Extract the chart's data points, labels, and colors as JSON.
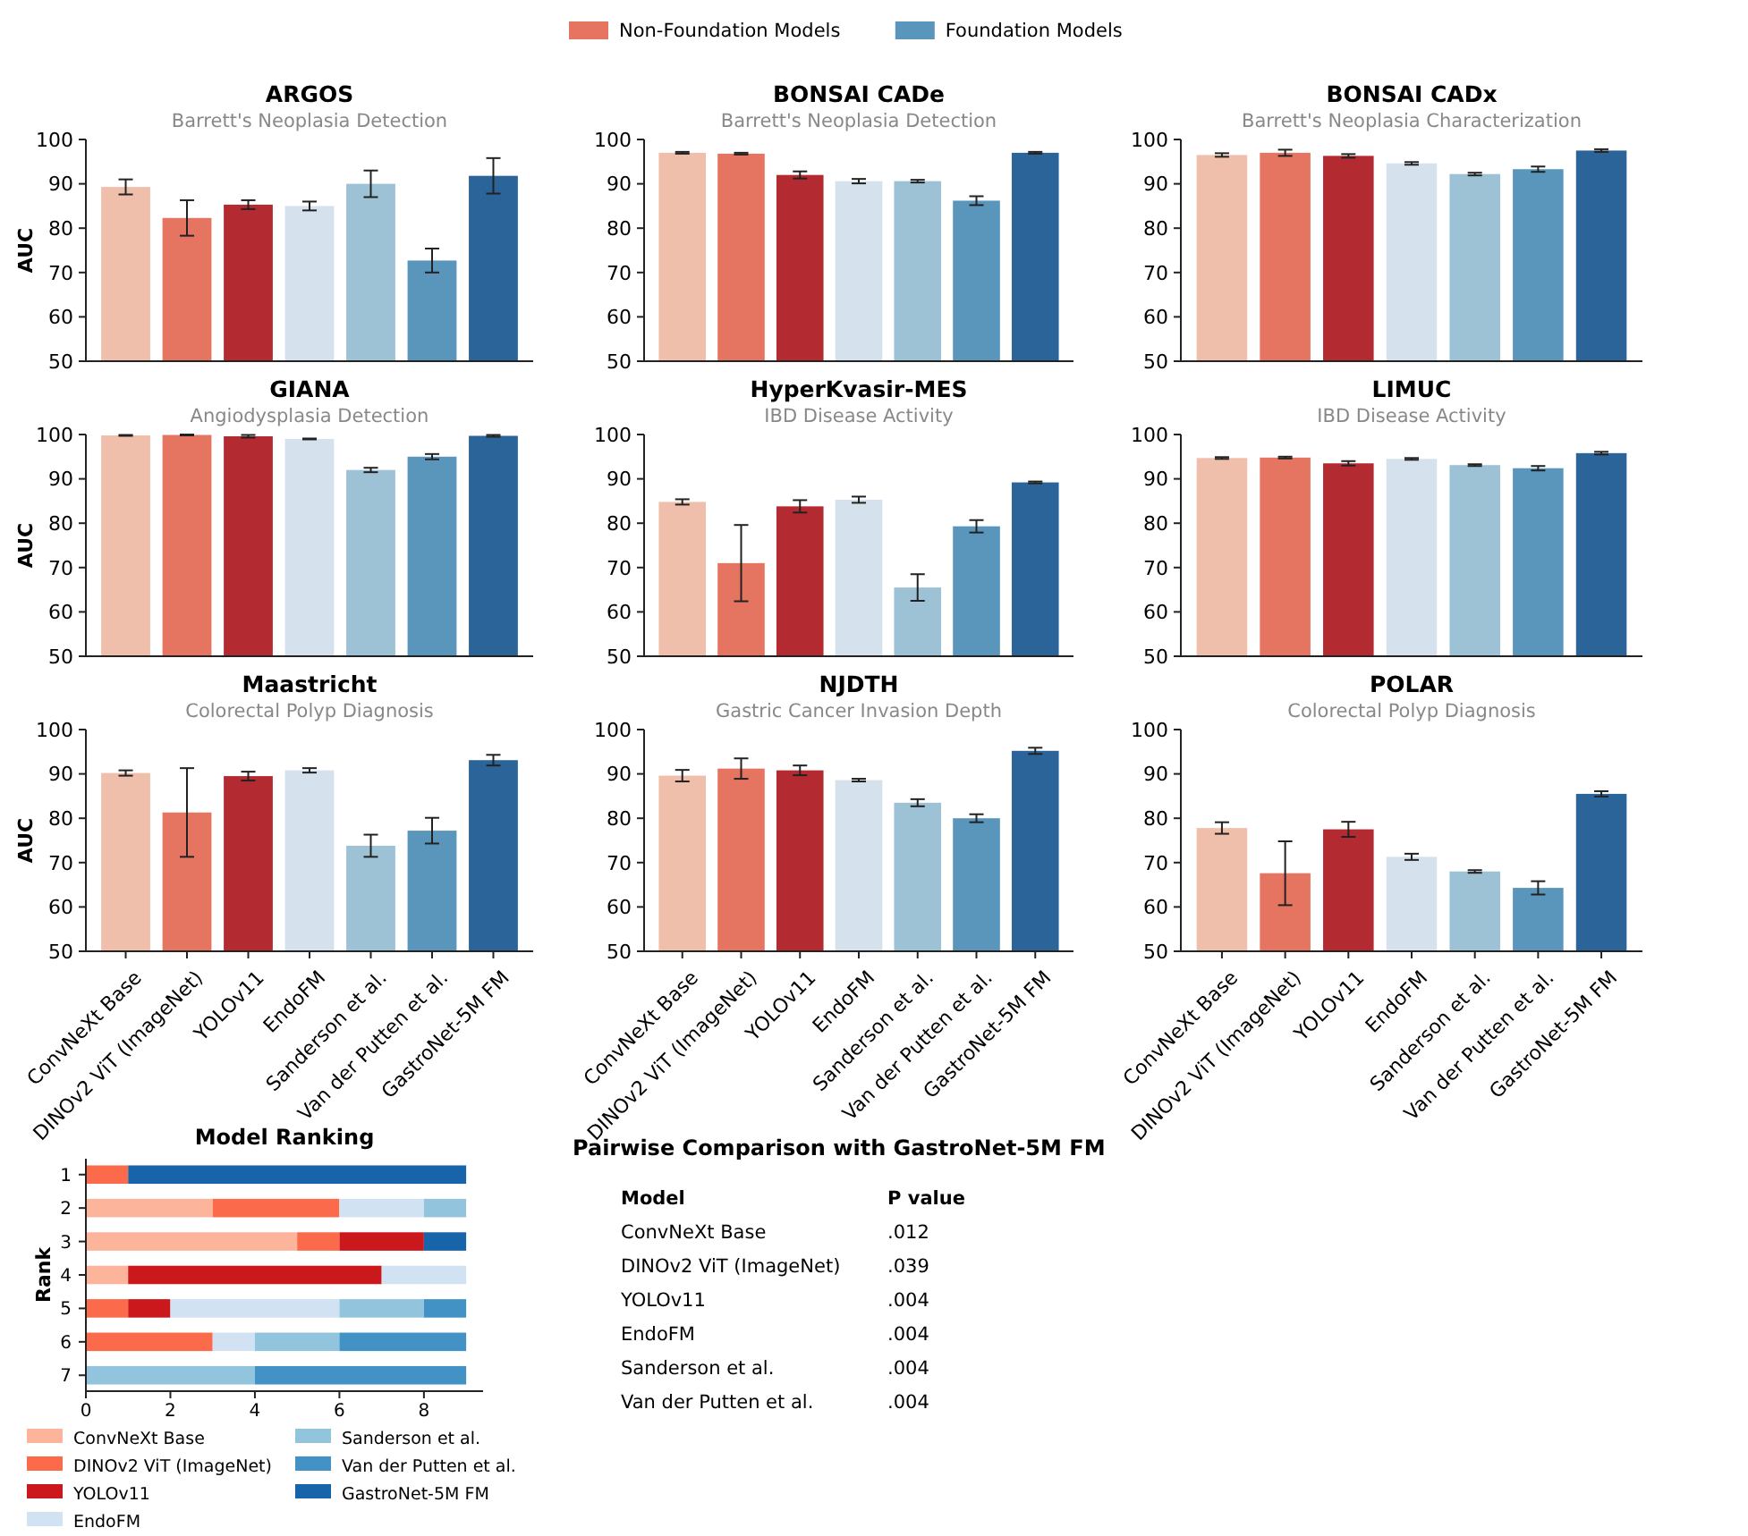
{
  "chart_data": [
    {
      "type": "other",
      "annotations": [
        "Non-Foundation Models",
        "Foundation Models"
      ],
      "colors": [
        "#e57560",
        "#5a96bb"
      ]
    },
    {
      "type": "bar",
      "title": "ARGOS",
      "subtitle": "Barrett's Neoplasia Detection",
      "ylabel": "AUC",
      "categories": [
        null,
        null,
        null,
        null,
        null,
        null,
        null
      ],
      "values": [
        89.3,
        82.3,
        85.3,
        85,
        90,
        72.7,
        91.8
      ],
      "errors": [
        1.7,
        4,
        1,
        1,
        3,
        2.7,
        4
      ],
      "colors": [
        "#f0bfab",
        "#e57560",
        "#b42a31",
        "#d5e2ee",
        "#9dc2d6",
        "#5a96bb",
        "#2a6499"
      ],
      "ylim": [
        50,
        100
      ],
      "yticks": [
        50,
        60,
        70,
        80,
        90,
        100
      ],
      "tick_labels": "y"
    },
    {
      "type": "bar",
      "title": "BONSAI CADe",
      "subtitle": "Barrett's Neoplasia Detection",
      "categories": [
        null,
        null,
        null,
        null,
        null,
        null,
        null
      ],
      "values": [
        97,
        96.8,
        92,
        90.6,
        90.6,
        86.2,
        97
      ],
      "errors": [
        0.2,
        0.2,
        0.8,
        0.5,
        0.3,
        1,
        0.2
      ],
      "colors": [
        "#f0bfab",
        "#e57560",
        "#b42a31",
        "#d5e2ee",
        "#9dc2d6",
        "#5a96bb",
        "#2a6499"
      ],
      "ylim": [
        50,
        100
      ],
      "yticks": [
        50,
        60,
        70,
        80,
        90,
        100
      ],
      "tick_labels": "y"
    },
    {
      "type": "bar",
      "title": "BONSAI CADx",
      "subtitle": "Barrett's Neoplasia Characterization",
      "categories": [
        null,
        null,
        null,
        null,
        null,
        null,
        null
      ],
      "values": [
        96.5,
        97,
        96.3,
        94.6,
        92.2,
        93.3,
        97.5
      ],
      "errors": [
        0.4,
        0.7,
        0.4,
        0.3,
        0.3,
        0.6,
        0.3
      ],
      "colors": [
        "#f0bfab",
        "#e57560",
        "#b42a31",
        "#d5e2ee",
        "#9dc2d6",
        "#5a96bb",
        "#2a6499"
      ],
      "ylim": [
        50,
        100
      ],
      "yticks": [
        50,
        60,
        70,
        80,
        90,
        100
      ],
      "tick_labels": "y"
    },
    {
      "type": "bar",
      "title": "GIANA",
      "subtitle": "Angiodysplasia Detection",
      "ylabel": "AUC",
      "categories": [
        null,
        null,
        null,
        null,
        null,
        null,
        null
      ],
      "values": [
        99.8,
        99.9,
        99.6,
        99,
        92,
        95,
        99.7
      ],
      "errors": [
        0.1,
        0.1,
        0.3,
        0.1,
        0.5,
        0.6,
        0.2
      ],
      "colors": [
        "#f0bfab",
        "#e57560",
        "#b42a31",
        "#d5e2ee",
        "#9dc2d6",
        "#5a96bb",
        "#2a6499"
      ],
      "ylim": [
        50,
        100
      ],
      "yticks": [
        50,
        60,
        70,
        80,
        90,
        100
      ],
      "tick_labels": "y"
    },
    {
      "type": "bar",
      "title": "HyperKvasir-MES",
      "subtitle": "IBD Disease Activity",
      "categories": [
        null,
        null,
        null,
        null,
        null,
        null,
        null
      ],
      "values": [
        84.8,
        71,
        83.8,
        85.3,
        65.5,
        79.3,
        89.2
      ],
      "errors": [
        0.6,
        8.6,
        1.4,
        0.7,
        3,
        1.4,
        0.2
      ],
      "colors": [
        "#f0bfab",
        "#e57560",
        "#b42a31",
        "#d5e2ee",
        "#9dc2d6",
        "#5a96bb",
        "#2a6499"
      ],
      "ylim": [
        50,
        100
      ],
      "yticks": [
        50,
        60,
        70,
        80,
        90,
        100
      ],
      "tick_labels": "y"
    },
    {
      "type": "bar",
      "title": "LIMUC",
      "subtitle": "IBD Disease Activity",
      "categories": [
        null,
        null,
        null,
        null,
        null,
        null,
        null
      ],
      "values": [
        94.7,
        94.8,
        93.5,
        94.5,
        93.1,
        92.4,
        95.8
      ],
      "errors": [
        0.2,
        0.2,
        0.5,
        0.2,
        0.2,
        0.5,
        0.3
      ],
      "colors": [
        "#f0bfab",
        "#e57560",
        "#b42a31",
        "#d5e2ee",
        "#9dc2d6",
        "#5a96bb",
        "#2a6499"
      ],
      "ylim": [
        50,
        100
      ],
      "yticks": [
        50,
        60,
        70,
        80,
        90,
        100
      ],
      "tick_labels": "y"
    },
    {
      "type": "bar",
      "title": "Maastricht",
      "subtitle": "Colorectal Polyp Diagnosis",
      "ylabel": "AUC",
      "categories": [
        "ConvNeXt Base",
        "DINOv2 ViT (ImageNet)",
        "YOLOv11",
        "EndoFM",
        "Sanderson et al.",
        "Van der Putten et al.",
        "GastroNet-5M FM"
      ],
      "values": [
        90.2,
        81.3,
        89.5,
        90.8,
        73.8,
        77.2,
        93.1
      ],
      "errors": [
        0.6,
        10,
        1,
        0.5,
        2.5,
        2.9,
        1.2
      ],
      "colors": [
        "#f0bfab",
        "#e57560",
        "#b42a31",
        "#d5e2ee",
        "#9dc2d6",
        "#5a96bb",
        "#2a6499"
      ],
      "ylim": [
        50,
        100
      ],
      "yticks": [
        50,
        60,
        70,
        80,
        90,
        100
      ]
    },
    {
      "type": "bar",
      "title": "NJDTH",
      "subtitle": "Gastric Cancer Invasion Depth",
      "categories": [
        "ConvNeXt Base",
        "DINOv2 ViT (ImageNet)",
        "YOLOv11",
        "EndoFM",
        "Sanderson et al.",
        "Van der Putten et al.",
        "GastroNet-5M FM"
      ],
      "values": [
        89.6,
        91.2,
        90.8,
        88.6,
        83.5,
        80,
        95.2
      ],
      "errors": [
        1.3,
        2.3,
        1.1,
        0.3,
        0.8,
        0.9,
        0.7
      ],
      "colors": [
        "#f0bfab",
        "#e57560",
        "#b42a31",
        "#d5e2ee",
        "#9dc2d6",
        "#5a96bb",
        "#2a6499"
      ],
      "ylim": [
        50,
        100
      ],
      "yticks": [
        50,
        60,
        70,
        80,
        90,
        100
      ]
    },
    {
      "type": "bar",
      "title": "POLAR",
      "subtitle": "Colorectal Polyp Diagnosis",
      "categories": [
        "ConvNeXt Base",
        "DINOv2 ViT (ImageNet)",
        "YOLOv11",
        "EndoFM",
        "Sanderson et al.",
        "Van der Putten et al.",
        "GastroNet-5M FM"
      ],
      "values": [
        77.8,
        67.6,
        77.5,
        71.3,
        68,
        64.3,
        85.5
      ],
      "errors": [
        1.3,
        7.2,
        1.7,
        0.7,
        0.3,
        1.5,
        0.6
      ],
      "colors": [
        "#f0bfab",
        "#e57560",
        "#b42a31",
        "#d5e2ee",
        "#9dc2d6",
        "#5a96bb",
        "#2a6499"
      ],
      "ylim": [
        50,
        100
      ],
      "yticks": [
        50,
        60,
        70,
        80,
        90,
        100
      ]
    },
    {
      "type": "bar",
      "title": "Model Ranking",
      "ylabel": "Rank",
      "orientation": "horizontal",
      "stacked": true,
      "legend": "bottom",
      "categories": [
        "1",
        "2",
        "3",
        "4",
        "5",
        "6",
        "7"
      ],
      "xlim": [
        0,
        9.4
      ],
      "xticks": [
        0,
        2,
        4,
        6,
        8
      ],
      "series": [
        {
          "name": "ConvNeXt Base",
          "color": "#fcb49a",
          "values": [
            0,
            3,
            5,
            1,
            0,
            0,
            0
          ]
        },
        {
          "name": "DINOv2 ViT (ImageNet)",
          "color": "#fb6a4a",
          "values": [
            1,
            3,
            1,
            0,
            1,
            3,
            0
          ]
        },
        {
          "name": "YOLOv11",
          "color": "#cb181d",
          "values": [
            0,
            0,
            2,
            6,
            1,
            0,
            0
          ]
        },
        {
          "name": "EndoFM",
          "color": "#d1e2f2",
          "values": [
            0,
            2,
            0,
            2,
            4,
            1,
            0
          ]
        },
        {
          "name": "Sanderson et al.",
          "color": "#93c4de",
          "values": [
            0,
            1,
            0,
            0,
            2,
            2,
            4
          ]
        },
        {
          "name": "Van der Putten et al.",
          "color": "#4292c6",
          "values": [
            0,
            0,
            0,
            0,
            1,
            3,
            5
          ]
        },
        {
          "name": "GastroNet-5M FM",
          "color": "#1864aa",
          "values": [
            8,
            0,
            1,
            0,
            0,
            0,
            0
          ]
        }
      ]
    },
    {
      "type": "other",
      "title": "Pairwise Comparison with GastroNet-5M FM",
      "annotations": [
        "Model",
        "P value",
        "ConvNeXt Base",
        ".012",
        "DINOv2 ViT (ImageNet)",
        ".039",
        "YOLOv11",
        ".004",
        "EndoFM",
        ".004",
        "Sanderson et al.",
        ".004",
        "Van der Putten et al.",
        ".004"
      ]
    }
  ]
}
